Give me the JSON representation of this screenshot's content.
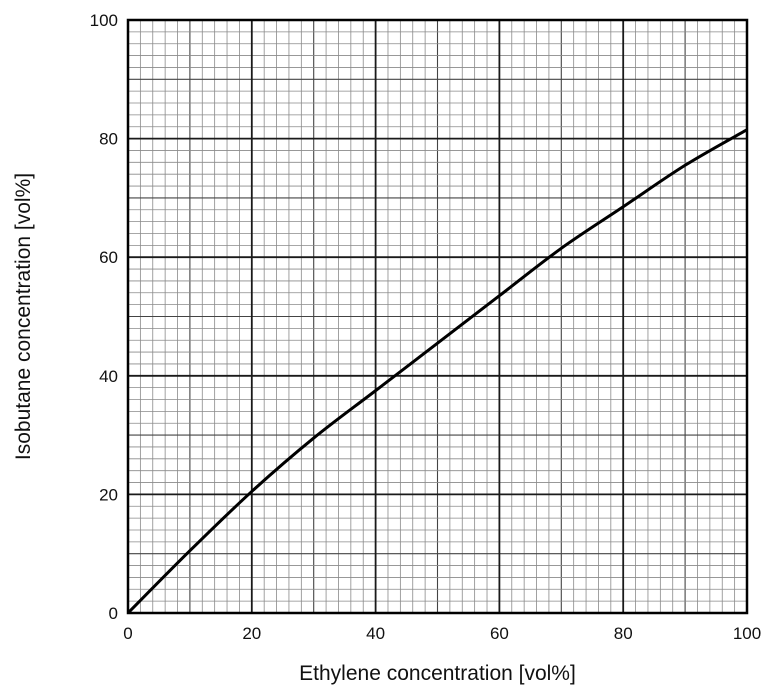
{
  "chart_data": {
    "type": "line",
    "title": "",
    "xlabel": "Ethylene concentration [vol%]",
    "ylabel": "Isobutane concentration [vol%]",
    "xlim": [
      0,
      100
    ],
    "ylim": [
      0,
      100
    ],
    "x_ticks": [
      "0",
      "20",
      "40",
      "60",
      "80",
      "100"
    ],
    "y_ticks": [
      "0",
      "20",
      "40",
      "60",
      "80",
      "100"
    ],
    "grid": true,
    "grid_minor_step": 2,
    "grid_major_step": 20,
    "legend": "none",
    "series": [
      {
        "color": "#000000",
        "x": [
          0,
          10,
          20,
          30,
          40,
          50,
          60,
          70,
          80,
          90,
          100
        ],
        "y": [
          0,
          10.5,
          20.5,
          29.5,
          37.5,
          45.5,
          53.5,
          61.5,
          68.5,
          75.5,
          81.5
        ]
      }
    ]
  }
}
